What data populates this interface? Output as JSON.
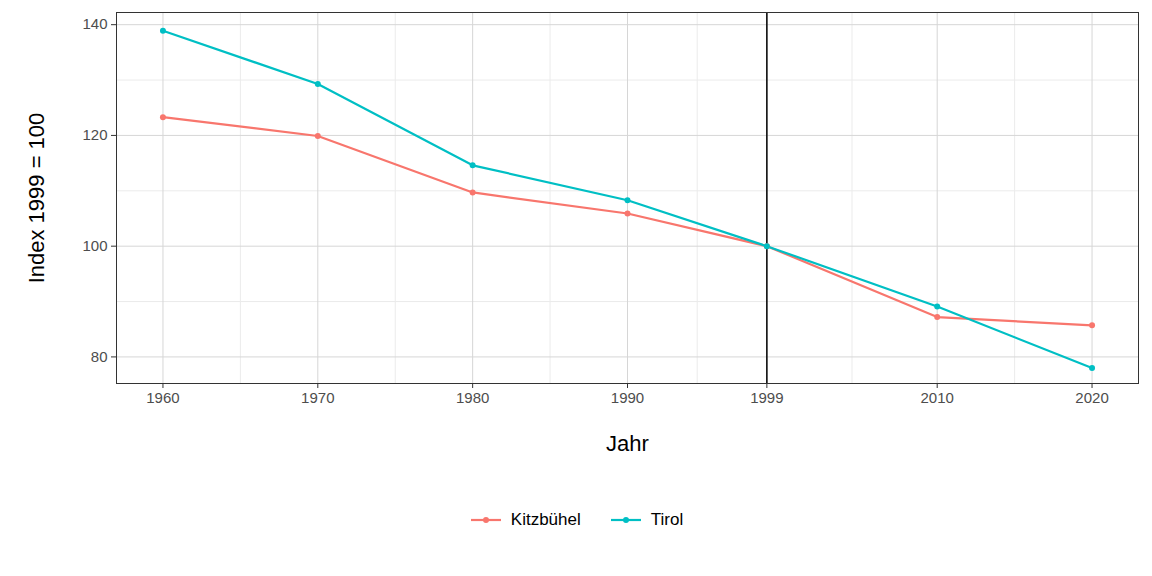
{
  "chart_data": {
    "type": "line",
    "x_label": "Jahr",
    "y_label": "Index 1999 = 100",
    "x": [
      1960,
      1970,
      1980,
      1990,
      1999,
      2010,
      2020
    ],
    "series": [
      {
        "name": "Kitzbühel",
        "color": "#F8766D",
        "values": [
          123.3,
          119.9,
          109.7,
          105.9,
          100,
          87.2,
          85.7
        ]
      },
      {
        "name": "Tirol",
        "color": "#00BFC4",
        "values": [
          138.9,
          129.3,
          114.6,
          108.3,
          100,
          89.1,
          78.0
        ]
      }
    ],
    "xlim": [
      1957,
      2023
    ],
    "ylim": [
      75.2,
      142.2
    ],
    "xticks": [
      1960,
      1970,
      1980,
      1990,
      1999,
      2010,
      2020
    ],
    "yticks": [
      80,
      100,
      120,
      140
    ],
    "grid": true,
    "legend": "bottom",
    "marker": "circle",
    "vertical_line": 1999
  }
}
